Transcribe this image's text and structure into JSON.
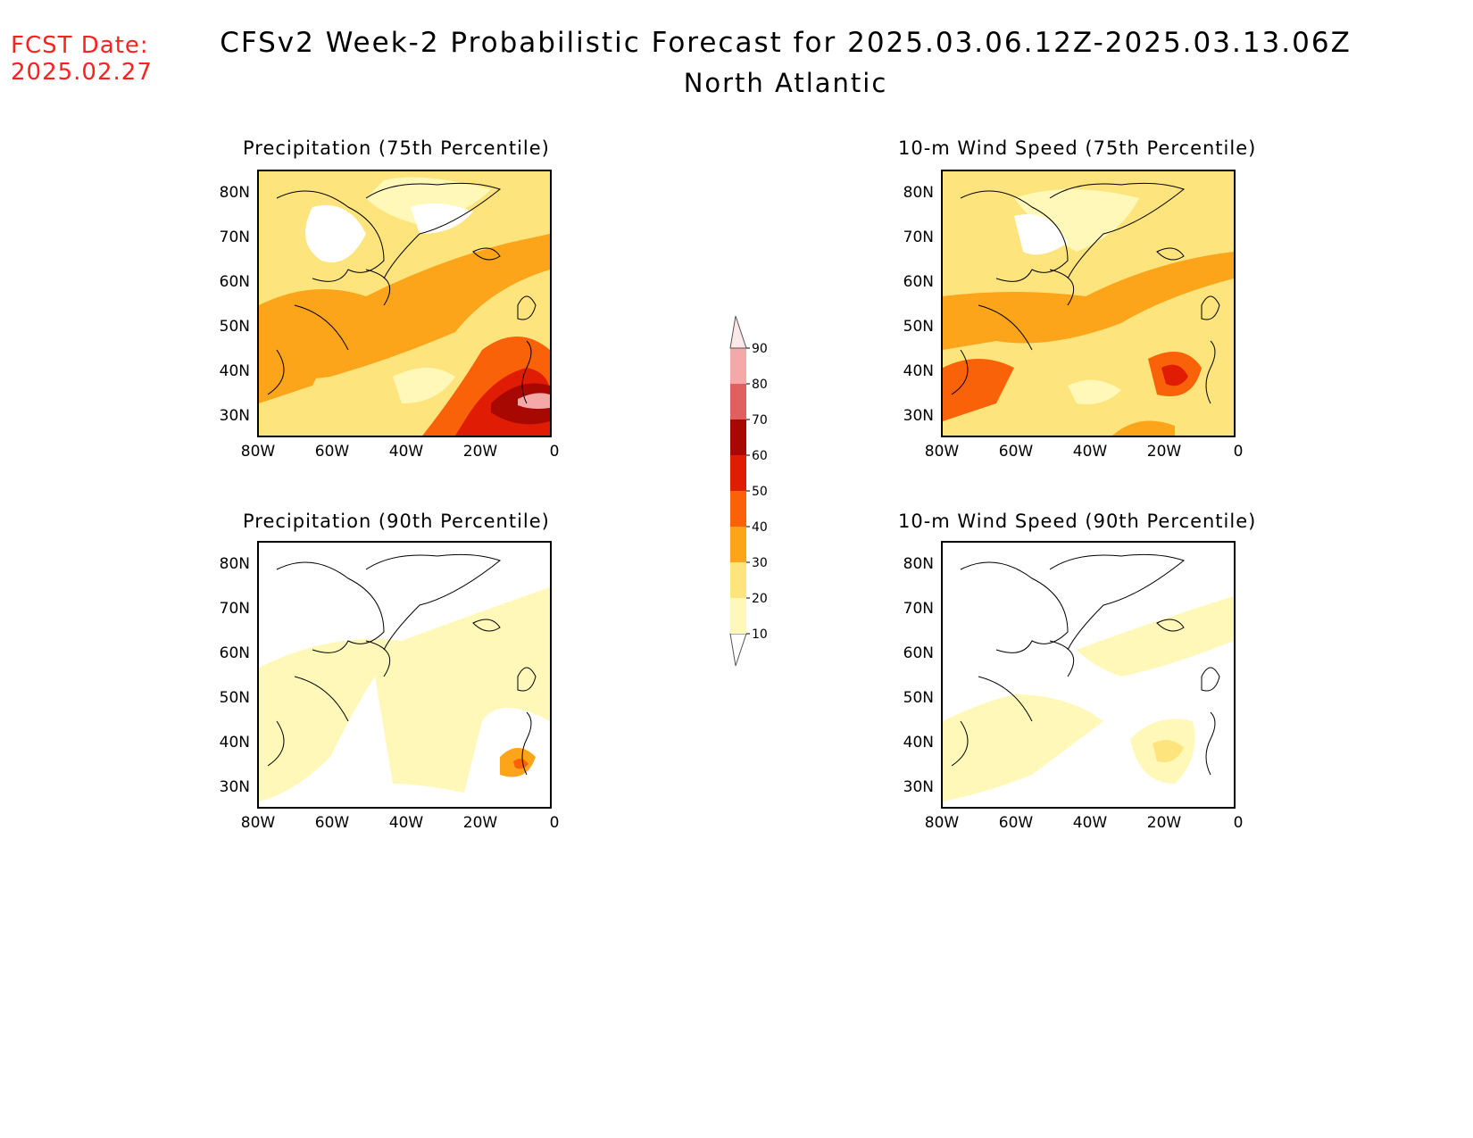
{
  "header": {
    "fcst_label": "FCST Date:",
    "fcst_date": "2025.02.27",
    "title": "CFSv2 Week-2 Probabilistic Forecast for 2025.03.06.12Z-2025.03.13.06Z",
    "subtitle": "North Atlantic"
  },
  "axes": {
    "lat_ticks": [
      "80N",
      "70N",
      "60N",
      "50N",
      "40N",
      "30N"
    ],
    "lon_ticks": [
      "80W",
      "60W",
      "40W",
      "20W",
      "0"
    ]
  },
  "panels": [
    {
      "id": "precip75",
      "title": "Precipitation (75th Percentile)"
    },
    {
      "id": "wind75",
      "title": "10-m Wind Speed (75th Percentile)"
    },
    {
      "id": "precip90",
      "title": "Precipitation (90th Percentile)"
    },
    {
      "id": "wind90",
      "title": "10-m Wind Speed (90th Percentile)"
    }
  ],
  "colorbar": {
    "levels": [
      "10",
      "20",
      "30",
      "40",
      "50",
      "60",
      "70",
      "80",
      "90"
    ],
    "colors": [
      "#fff8b8",
      "#fde47c",
      "#fca41a",
      "#f96208",
      "#e01c04",
      "#a80802",
      "#e06060",
      "#f4a8a8",
      "#fde8e8"
    ]
  }
}
